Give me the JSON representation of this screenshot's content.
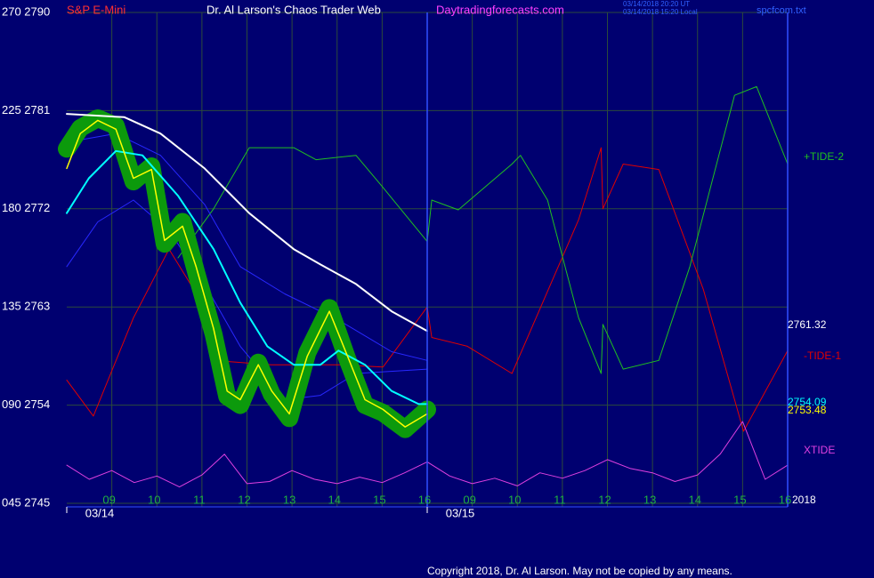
{
  "chart_data": {
    "type": "line",
    "symbol": "S&P E-Mini",
    "title": "Dr. Al Larson's Chaos Trader Web",
    "site": "Daytradingforecasts.com",
    "timestamps": [
      "03/14/2018 20:20 UT",
      "03/14/2018 15:20 Local"
    ],
    "file": "spcfcom.txt",
    "copyright": "Copyright 2018, Dr. Al Larson. May not be copied by any means.",
    "year": "2018",
    "annotations": [
      "2761.32",
      "2754.09",
      "2753.48"
    ],
    "xlim": [
      0,
      16
    ],
    "ylim": [
      2745,
      2790
    ],
    "yticks": [
      {
        "value": 2790,
        "label": "270 2790"
      },
      {
        "value": 2781,
        "label": "225 2781"
      },
      {
        "value": 2772,
        "label": "180 2772"
      },
      {
        "value": 2763,
        "label": "135 2763"
      },
      {
        "value": 2754,
        "label": "090 2754"
      },
      {
        "value": 2745,
        "label": "045 2745"
      }
    ],
    "xticks": [
      {
        "value": 1,
        "label": "09"
      },
      {
        "value": 2,
        "label": "10"
      },
      {
        "value": 3,
        "label": "11"
      },
      {
        "value": 4,
        "label": "12"
      },
      {
        "value": 5,
        "label": "13"
      },
      {
        "value": 6,
        "label": "14"
      },
      {
        "value": 7,
        "label": "15"
      },
      {
        "value": 8,
        "label": "16"
      },
      {
        "value": 9,
        "label": "09"
      },
      {
        "value": 10,
        "label": "10"
      },
      {
        "value": 11,
        "label": "11"
      },
      {
        "value": 12,
        "label": "12"
      },
      {
        "value": 13,
        "label": "13"
      },
      {
        "value": 14,
        "label": "14"
      },
      {
        "value": 15,
        "label": "15"
      },
      {
        "value": 16,
        "label": "16"
      }
    ],
    "date_ticks": [
      {
        "value": 0,
        "label": "03/14"
      },
      {
        "value": 8,
        "label": "03/15"
      }
    ],
    "grid": true,
    "series": [
      {
        "name": "-TIDE-1",
        "color": "#e00000",
        "width": 1,
        "x": [
          0,
          0.59,
          1.48,
          2.27,
          3.06,
          3.56,
          4.55,
          6.03,
          7.02,
          8,
          8.1,
          8.89,
          9.88,
          11.36,
          11.86,
          11.9,
          12.35,
          13.14,
          14.13,
          15.02,
          16
        ],
        "values": [
          2756.3,
          2753.0,
          2762,
          2768.3,
          2763,
          2758,
          2757.7,
          2757.7,
          2757.5,
          2763,
          2760.2,
          2759.4,
          2756.9,
          2771,
          2777.6,
          2772,
          2776.1,
          2775.6,
          2764.6,
          2751.6,
          2759
        ]
      },
      {
        "name": "+TIDE-2",
        "color": "#20c020",
        "width": 1,
        "x": [
          2.47,
          3.26,
          4.05,
          5.04,
          5.53,
          6.42,
          7.01,
          8,
          8.1,
          8.69,
          9.88,
          10.07,
          10.67,
          11.36,
          11.86,
          11.9,
          12.35,
          13.14,
          13.83,
          14.82,
          15.31,
          16
        ],
        "values": [
          2767.5,
          2772,
          2777.6,
          2777.6,
          2776.5,
          2776.9,
          2774,
          2769,
          2772.8,
          2771.9,
          2776.1,
          2776.9,
          2772.8,
          2762,
          2756.9,
          2761.4,
          2757.3,
          2758.1,
          2766.7,
          2782.4,
          2783.2,
          2776.1
        ]
      },
      {
        "name": "XTIDE",
        "color": "#e040e0",
        "width": 1,
        "x": [
          0,
          0.5,
          1,
          1.5,
          2,
          2.5,
          3,
          3.5,
          4,
          4.5,
          5,
          5.5,
          6,
          6.5,
          7,
          7.5,
          8,
          8.5,
          9,
          9.5,
          10,
          10.5,
          11,
          11.5,
          12,
          12.5,
          13,
          13.5,
          14,
          14.5,
          15,
          15.5,
          16
        ],
        "values": [
          2748.5,
          2747.2,
          2748,
          2746.9,
          2747.5,
          2746.5,
          2747.6,
          2749.5,
          2746.8,
          2747,
          2748,
          2747.2,
          2746.8,
          2747.4,
          2746.9,
          2747.8,
          2748.8,
          2747.5,
          2746.8,
          2747.3,
          2746.6,
          2747.8,
          2747.3,
          2748,
          2749,
          2748.2,
          2747.8,
          2747,
          2747.6,
          2749.5,
          2752.5,
          2747.2,
          2748.5
        ]
      },
      {
        "color": "#2828ff",
        "width": 1,
        "x": [
          0,
          1.09,
          2.08,
          3.06,
          3.85,
          4.84,
          6.03,
          7.21,
          8
        ],
        "values": [
          2778.1,
          2778.9,
          2776.9,
          2772.4,
          2766.7,
          2764.2,
          2761.8,
          2758.9,
          2758.1
        ]
      },
      {
        "color": "#2828ff",
        "width": 1,
        "x": [
          0,
          0.69,
          1.48,
          2.27,
          3.06,
          3.85,
          4.84,
          5.63,
          6.42,
          8
        ],
        "values": [
          2766.7,
          2770.8,
          2772.8,
          2770,
          2765.1,
          2759.4,
          2754.5,
          2754.9,
          2756.9,
          2757.3
        ]
      },
      {
        "color": "#0c9a0c",
        "width": 20,
        "x": [
          0,
          0.3,
          0.69,
          1.09,
          1.48,
          1.88,
          2.17,
          2.57,
          2.87,
          3.26,
          3.56,
          3.85,
          4.25,
          4.55,
          4.94,
          5.34,
          5.83,
          6.23,
          6.62,
          7.02,
          7.51,
          8
        ],
        "values": [
          2777.5,
          2779.4,
          2780.3,
          2779.6,
          2774.5,
          2775.9,
          2768.8,
          2770.8,
          2766.2,
          2760.5,
          2754.8,
          2754.0,
          2757.9,
          2755.0,
          2752.8,
          2758.8,
          2762.9,
          2758.2,
          2754.0,
          2753.3,
          2751.8,
          2753.6
        ]
      },
      {
        "color": "#ffffff",
        "width": 2,
        "x": [
          0,
          1.28,
          2.08,
          3.06,
          4.05,
          5.04,
          5.63,
          6.42,
          7.21,
          8
        ],
        "values": [
          2780.7,
          2780.4,
          2778.9,
          2775.7,
          2771.6,
          2768.3,
          2766.9,
          2765.1,
          2762.6,
          2760.8
        ]
      },
      {
        "color": "#00ffff",
        "width": 2,
        "x": [
          0,
          0.49,
          1.09,
          1.68,
          2.47,
          3.26,
          3.85,
          4.45,
          5.04,
          5.63,
          6.03,
          6.62,
          7.21,
          7.81,
          8
        ],
        "values": [
          2771.6,
          2774.8,
          2777.3,
          2776.9,
          2773.2,
          2768.3,
          2763.4,
          2759.4,
          2757.7,
          2757.7,
          2759.0,
          2757.7,
          2755.3,
          2754.1,
          2754.1
        ]
      },
      {
        "color": "#ffff00",
        "width": 1.5,
        "x": [
          0,
          0.3,
          0.69,
          1.09,
          1.48,
          1.88,
          2.17,
          2.57,
          2.87,
          3.26,
          3.56,
          3.85,
          4.25,
          4.55,
          4.94,
          5.34,
          5.83,
          6.23,
          6.62,
          7.02,
          7.51,
          8
        ],
        "values": [
          2775.7,
          2778.9,
          2780.1,
          2779.3,
          2774.8,
          2775.6,
          2769.1,
          2770.4,
          2766.7,
          2761.0,
          2755.3,
          2754.5,
          2757.7,
          2755.3,
          2753.2,
          2758.5,
          2762.6,
          2758.5,
          2754.5,
          2753.6,
          2752.0,
          2753.2
        ]
      }
    ]
  }
}
